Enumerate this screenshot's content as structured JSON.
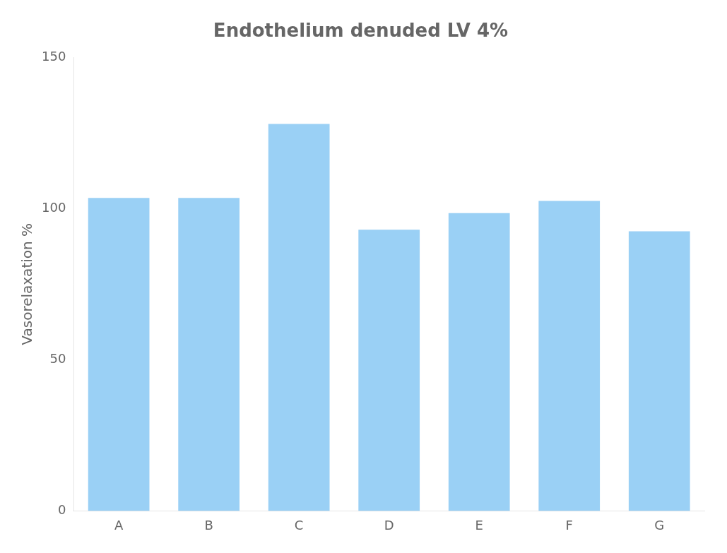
{
  "chart_data": {
    "type": "bar",
    "title": "Endothelium denuded LV 4%",
    "ylabel": "Vasorelaxation %",
    "categories": [
      "A",
      "B",
      "C",
      "D",
      "E",
      "F",
      "G"
    ],
    "values": [
      103.5,
      103.5,
      128.0,
      93.0,
      98.5,
      102.5,
      92.5
    ],
    "ylim": [
      0,
      150
    ],
    "yticks": [
      0,
      50,
      100,
      150
    ],
    "grid": false
  }
}
